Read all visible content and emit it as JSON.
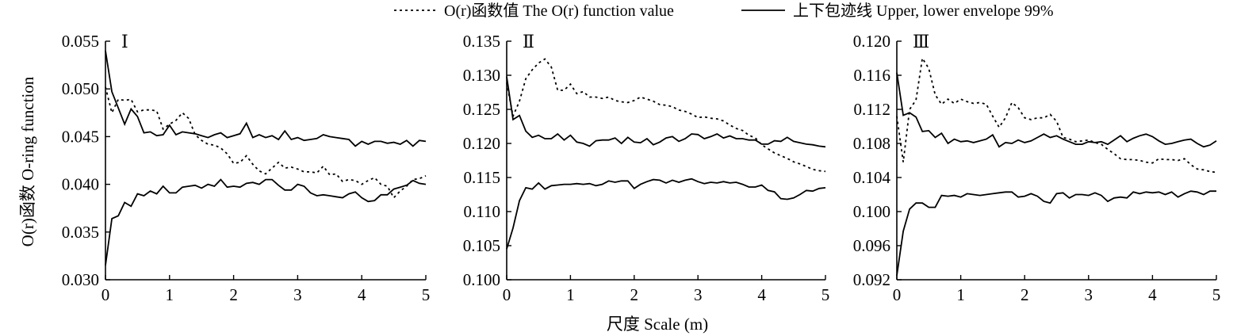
{
  "legend": {
    "observed_label": "O(r)函数值 The O(r) function value",
    "envelope_label": "上下包迹线 Upper, lower envelope 99%"
  },
  "xlabel": "尺度 Scale (m)",
  "ylabel": "O(r)函数 O-ring function",
  "chart_data": [
    {
      "type": "line",
      "panel": "Ⅰ",
      "xlim": [
        0,
        5
      ],
      "ylim": [
        0.03,
        0.055
      ],
      "xticks": [
        0,
        1,
        2,
        3,
        4,
        5
      ],
      "yticks": [
        0.03,
        0.035,
        0.04,
        0.045,
        0.05,
        0.055
      ],
      "ytick_labels": [
        "0.030",
        "0.035",
        "0.040",
        "0.045",
        "0.050",
        "0.055"
      ],
      "x": [
        0,
        0.1,
        0.2,
        0.3,
        0.4,
        0.5,
        0.6,
        0.7,
        0.8,
        0.9,
        1.0,
        1.1,
        1.2,
        1.3,
        1.4,
        1.5,
        1.6,
        1.7,
        1.8,
        1.9,
        2.0,
        2.1,
        2.2,
        2.3,
        2.4,
        2.5,
        2.6,
        2.7,
        2.8,
        2.9,
        3.0,
        3.1,
        3.2,
        3.3,
        3.4,
        3.5,
        3.6,
        3.7,
        3.8,
        3.9,
        4.0,
        4.1,
        4.2,
        4.3,
        4.4,
        4.5,
        4.6,
        4.7,
        4.8,
        4.9,
        5.0
      ],
      "series": [
        {
          "role": "observed",
          "values": [
            0.0502,
            0.0475,
            0.0489,
            0.0488,
            0.0489,
            0.0476,
            0.0478,
            0.0478,
            0.0477,
            0.0458,
            0.0463,
            0.0467,
            0.0475,
            0.0469,
            0.0452,
            0.0446,
            0.0442,
            0.0441,
            0.0438,
            0.0432,
            0.0422,
            0.0423,
            0.043,
            0.0421,
            0.0414,
            0.0411,
            0.0417,
            0.0423,
            0.0417,
            0.0418,
            0.0416,
            0.0413,
            0.0413,
            0.0412,
            0.0419,
            0.041,
            0.0411,
            0.0403,
            0.0405,
            0.0404,
            0.04,
            0.0404,
            0.0407,
            0.04,
            0.0398,
            0.0386,
            0.0393,
            0.0398,
            0.0405,
            0.0406,
            0.0409
          ]
        },
        {
          "role": "upper",
          "values": [
            0.054,
            0.0497,
            0.048,
            0.0463,
            0.0479,
            0.0471,
            0.0454,
            0.0455,
            0.0451,
            0.0452,
            0.0462,
            0.0452,
            0.0455,
            0.0454,
            0.0453,
            0.0451,
            0.0449,
            0.0452,
            0.0454,
            0.0449,
            0.0451,
            0.0453,
            0.0464,
            0.0449,
            0.0452,
            0.0449,
            0.0451,
            0.0447,
            0.0456,
            0.0447,
            0.0449,
            0.0446,
            0.0447,
            0.0448,
            0.0452,
            0.045,
            0.0449,
            0.0448,
            0.0447,
            0.044,
            0.0445,
            0.0442,
            0.0445,
            0.0445,
            0.0443,
            0.0444,
            0.0442,
            0.0446,
            0.044,
            0.0446,
            0.0445
          ]
        },
        {
          "role": "lower",
          "values": [
            0.0315,
            0.0364,
            0.0367,
            0.0381,
            0.0377,
            0.039,
            0.0388,
            0.0393,
            0.039,
            0.0398,
            0.0391,
            0.0391,
            0.0397,
            0.0398,
            0.0399,
            0.0396,
            0.04,
            0.0398,
            0.0405,
            0.0397,
            0.0398,
            0.0397,
            0.0401,
            0.0402,
            0.04,
            0.0405,
            0.0405,
            0.0399,
            0.0394,
            0.0394,
            0.04,
            0.0398,
            0.0391,
            0.0388,
            0.0389,
            0.0388,
            0.0387,
            0.0386,
            0.039,
            0.0392,
            0.0386,
            0.0382,
            0.0383,
            0.0389,
            0.0389,
            0.0395,
            0.0397,
            0.0399,
            0.0404,
            0.0401,
            0.04
          ]
        }
      ]
    },
    {
      "type": "line",
      "panel": "Ⅱ",
      "xlim": [
        0,
        5
      ],
      "ylim": [
        0.1,
        0.135
      ],
      "xticks": [
        0,
        1,
        2,
        3,
        4,
        5
      ],
      "yticks": [
        0.1,
        0.105,
        0.11,
        0.115,
        0.12,
        0.125,
        0.13,
        0.135
      ],
      "ytick_labels": [
        "0.100",
        "0.105",
        "0.110",
        "0.115",
        "0.120",
        "0.125",
        "0.130",
        "0.135"
      ],
      "x": [
        0,
        0.1,
        0.2,
        0.3,
        0.4,
        0.5,
        0.6,
        0.7,
        0.8,
        0.9,
        1.0,
        1.1,
        1.2,
        1.3,
        1.4,
        1.5,
        1.6,
        1.7,
        1.8,
        1.9,
        2.0,
        2.1,
        2.2,
        2.3,
        2.4,
        2.5,
        2.6,
        2.7,
        2.8,
        2.9,
        3.0,
        3.1,
        3.2,
        3.3,
        3.4,
        3.5,
        3.6,
        3.7,
        3.8,
        3.9,
        4.0,
        4.1,
        4.2,
        4.3,
        4.4,
        4.5,
        4.6,
        4.7,
        4.8,
        4.9,
        5.0
      ],
      "series": [
        {
          "role": "observed",
          "values": [
            0.1289,
            0.124,
            0.1262,
            0.1295,
            0.1308,
            0.1318,
            0.1324,
            0.1312,
            0.1278,
            0.1278,
            0.1287,
            0.1273,
            0.1276,
            0.1268,
            0.1268,
            0.1266,
            0.1268,
            0.1263,
            0.1261,
            0.126,
            0.1263,
            0.1268,
            0.1265,
            0.1262,
            0.1257,
            0.1256,
            0.1254,
            0.1249,
            0.1247,
            0.1243,
            0.1238,
            0.1239,
            0.1237,
            0.1236,
            0.1233,
            0.1227,
            0.1222,
            0.1219,
            0.1212,
            0.1208,
            0.1198,
            0.1192,
            0.1186,
            0.1182,
            0.1178,
            0.1173,
            0.117,
            0.1166,
            0.1162,
            0.116,
            0.1159
          ]
        },
        {
          "role": "upper",
          "values": [
            0.1298,
            0.1235,
            0.1241,
            0.1218,
            0.1209,
            0.1212,
            0.1207,
            0.1207,
            0.1214,
            0.1205,
            0.1212,
            0.1202,
            0.12,
            0.1196,
            0.1204,
            0.1205,
            0.1205,
            0.1208,
            0.12,
            0.1209,
            0.1202,
            0.1201,
            0.1207,
            0.1198,
            0.1202,
            0.1208,
            0.121,
            0.1203,
            0.1207,
            0.1214,
            0.1213,
            0.1207,
            0.121,
            0.1214,
            0.1208,
            0.1211,
            0.1207,
            0.1207,
            0.1205,
            0.1205,
            0.1199,
            0.1199,
            0.1204,
            0.1203,
            0.1209,
            0.1203,
            0.1201,
            0.1199,
            0.1198,
            0.1196,
            0.1195
          ]
        },
        {
          "role": "lower",
          "values": [
            0.1045,
            0.1076,
            0.1116,
            0.1135,
            0.1133,
            0.1142,
            0.1133,
            0.1138,
            0.1139,
            0.114,
            0.114,
            0.1141,
            0.114,
            0.1141,
            0.1138,
            0.114,
            0.1145,
            0.1143,
            0.1145,
            0.1145,
            0.1134,
            0.114,
            0.1144,
            0.1147,
            0.1146,
            0.1142,
            0.1146,
            0.1143,
            0.1146,
            0.1148,
            0.1144,
            0.1141,
            0.1143,
            0.1142,
            0.1144,
            0.1142,
            0.1143,
            0.114,
            0.1136,
            0.1136,
            0.1139,
            0.1131,
            0.1129,
            0.1119,
            0.1118,
            0.112,
            0.1125,
            0.1131,
            0.113,
            0.1134,
            0.1135
          ]
        }
      ]
    },
    {
      "type": "line",
      "panel": "Ⅲ",
      "xlim": [
        0,
        5
      ],
      "ylim": [
        0.092,
        0.12
      ],
      "xticks": [
        0,
        1,
        2,
        3,
        4,
        5
      ],
      "yticks": [
        0.092,
        0.096,
        0.1,
        0.104,
        0.108,
        0.112,
        0.116,
        0.12
      ],
      "ytick_labels": [
        "0.092",
        "0.096",
        "0.100",
        "0.104",
        "0.108",
        "0.112",
        "0.116",
        "0.120"
      ],
      "x": [
        0,
        0.1,
        0.2,
        0.3,
        0.4,
        0.5,
        0.6,
        0.7,
        0.8,
        0.9,
        1.0,
        1.1,
        1.2,
        1.3,
        1.4,
        1.5,
        1.6,
        1.7,
        1.8,
        1.9,
        2.0,
        2.1,
        2.2,
        2.3,
        2.4,
        2.5,
        2.6,
        2.7,
        2.8,
        2.9,
        3.0,
        3.1,
        3.2,
        3.3,
        3.4,
        3.5,
        3.6,
        3.7,
        3.8,
        3.9,
        4.0,
        4.1,
        4.2,
        4.3,
        4.4,
        4.5,
        4.6,
        4.7,
        4.8,
        4.9,
        5.0
      ],
      "series": [
        {
          "role": "observed",
          "values": [
            0.1112,
            0.1058,
            0.112,
            0.1131,
            0.118,
            0.1168,
            0.1137,
            0.1126,
            0.1132,
            0.1127,
            0.1132,
            0.1129,
            0.1127,
            0.1128,
            0.1126,
            0.1112,
            0.1099,
            0.111,
            0.1128,
            0.1122,
            0.111,
            0.1108,
            0.111,
            0.111,
            0.1114,
            0.1106,
            0.1087,
            0.1085,
            0.1082,
            0.1083,
            0.1084,
            0.1081,
            0.1079,
            0.1073,
            0.1068,
            0.1062,
            0.1061,
            0.1061,
            0.106,
            0.1058,
            0.1057,
            0.1062,
            0.1061,
            0.1061,
            0.106,
            0.1062,
            0.1055,
            0.105,
            0.1049,
            0.1047,
            0.1046
          ]
        },
        {
          "role": "upper",
          "values": [
            0.1163,
            0.1113,
            0.1116,
            0.1111,
            0.1094,
            0.1095,
            0.1087,
            0.1092,
            0.108,
            0.1085,
            0.1082,
            0.1083,
            0.1081,
            0.1083,
            0.1085,
            0.109,
            0.1076,
            0.1081,
            0.108,
            0.1084,
            0.1081,
            0.1083,
            0.1087,
            0.1091,
            0.1087,
            0.1089,
            0.1085,
            0.1082,
            0.1079,
            0.1079,
            0.1082,
            0.1081,
            0.1082,
            0.1079,
            0.1084,
            0.1089,
            0.1082,
            0.1086,
            0.1089,
            0.1091,
            0.1088,
            0.1083,
            0.1079,
            0.108,
            0.1082,
            0.1084,
            0.1085,
            0.108,
            0.1076,
            0.1078,
            0.1083
          ]
        },
        {
          "role": "lower",
          "values": [
            0.0925,
            0.0977,
            0.1003,
            0.101,
            0.101,
            0.1005,
            0.1005,
            0.1019,
            0.1018,
            0.1019,
            0.1017,
            0.1021,
            0.102,
            0.1019,
            0.102,
            0.1021,
            0.1022,
            0.1023,
            0.1023,
            0.1017,
            0.1018,
            0.1021,
            0.1018,
            0.1012,
            0.101,
            0.1021,
            0.1022,
            0.1016,
            0.102,
            0.102,
            0.1019,
            0.1022,
            0.1019,
            0.1012,
            0.1016,
            0.1017,
            0.1016,
            0.1023,
            0.1021,
            0.1023,
            0.1022,
            0.1023,
            0.102,
            0.1023,
            0.1017,
            0.1021,
            0.1024,
            0.1023,
            0.102,
            0.1024,
            0.1024
          ]
        }
      ]
    }
  ]
}
